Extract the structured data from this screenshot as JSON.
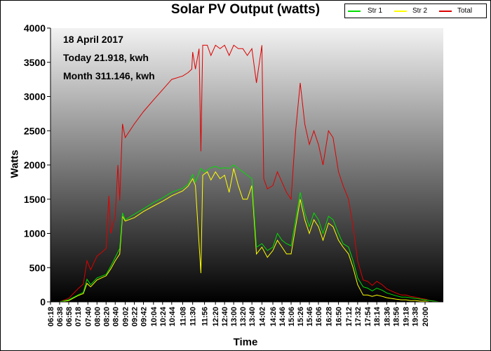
{
  "chart_data": {
    "type": "line",
    "title": "Solar PV Output (watts)",
    "xlabel": "Time",
    "ylabel": "Watts",
    "ylim": [
      0,
      4000
    ],
    "yticks": [
      0,
      500,
      1000,
      1500,
      2000,
      2500,
      3000,
      3500,
      4000
    ],
    "x_range": [
      "06:18",
      "20:40"
    ],
    "x_tick_labels": [
      "06:18",
      "06:38",
      "06:58",
      "07:18",
      "07:40",
      "08:00",
      "08:20",
      "08:40",
      "09:02",
      "09:22",
      "09:42",
      "10:04",
      "10:24",
      "10:44",
      "11:08",
      "11:30",
      "11:56",
      "12:20",
      "12:40",
      "13:00",
      "13:20",
      "13:40",
      "14:02",
      "14:26",
      "14:46",
      "15:06",
      "15:26",
      "15:46",
      "16:06",
      "16:28",
      "16:50",
      "17:12",
      "17:32",
      "17:54",
      "18:14",
      "18:36",
      "18:56",
      "19:18",
      "19:38",
      "20:00"
    ],
    "annotations": [
      "18 April 2017",
      "Today 21.918, kwh",
      "Month 311.146, kwh"
    ],
    "legend_position": "top-right",
    "background": "vertical gradient, light grey at top to black at bottom",
    "series": [
      {
        "name": "Str 1",
        "color": "#00dd00",
        "points": [
          [
            "06:18",
            0
          ],
          [
            "06:38",
            0
          ],
          [
            "06:58",
            30
          ],
          [
            "07:18",
            100
          ],
          [
            "07:30",
            140
          ],
          [
            "07:38",
            330
          ],
          [
            "07:46",
            250
          ],
          [
            "08:00",
            350
          ],
          [
            "08:20",
            400
          ],
          [
            "08:30",
            520
          ],
          [
            "08:40",
            650
          ],
          [
            "08:50",
            780
          ],
          [
            "08:56",
            1300
          ],
          [
            "09:02",
            1200
          ],
          [
            "09:22",
            1280
          ],
          [
            "09:42",
            1360
          ],
          [
            "10:04",
            1450
          ],
          [
            "10:24",
            1520
          ],
          [
            "10:44",
            1600
          ],
          [
            "11:08",
            1660
          ],
          [
            "11:20",
            1720
          ],
          [
            "11:30",
            1860
          ],
          [
            "11:36",
            1750
          ],
          [
            "11:48",
            1950
          ],
          [
            "11:56",
            1900
          ],
          [
            "12:10",
            1960
          ],
          [
            "12:20",
            1980
          ],
          [
            "12:30",
            1950
          ],
          [
            "12:40",
            1960
          ],
          [
            "12:50",
            1950
          ],
          [
            "13:00",
            2000
          ],
          [
            "13:10",
            1950
          ],
          [
            "13:20",
            1900
          ],
          [
            "13:30",
            1850
          ],
          [
            "13:40",
            1800
          ],
          [
            "13:50",
            800
          ],
          [
            "14:02",
            850
          ],
          [
            "14:14",
            750
          ],
          [
            "14:26",
            800
          ],
          [
            "14:36",
            1000
          ],
          [
            "14:46",
            900
          ],
          [
            "14:56",
            850
          ],
          [
            "15:06",
            820
          ],
          [
            "15:16",
            1200
          ],
          [
            "15:26",
            1600
          ],
          [
            "15:36",
            1300
          ],
          [
            "15:46",
            1100
          ],
          [
            "15:56",
            1300
          ],
          [
            "16:06",
            1200
          ],
          [
            "16:16",
            1000
          ],
          [
            "16:28",
            1250
          ],
          [
            "16:38",
            1200
          ],
          [
            "16:50",
            1000
          ],
          [
            "17:00",
            850
          ],
          [
            "17:12",
            800
          ],
          [
            "17:22",
            600
          ],
          [
            "17:32",
            350
          ],
          [
            "17:44",
            220
          ],
          [
            "17:54",
            200
          ],
          [
            "18:04",
            160
          ],
          [
            "18:14",
            200
          ],
          [
            "18:26",
            170
          ],
          [
            "18:36",
            130
          ],
          [
            "18:46",
            110
          ],
          [
            "18:56",
            90
          ],
          [
            "19:08",
            70
          ],
          [
            "19:18",
            70
          ],
          [
            "19:28",
            60
          ],
          [
            "19:38",
            50
          ],
          [
            "19:50",
            40
          ],
          [
            "20:00",
            30
          ],
          [
            "20:10",
            20
          ],
          [
            "20:20",
            10
          ],
          [
            "20:30",
            0
          ],
          [
            "20:40",
            0
          ]
        ]
      },
      {
        "name": "Str 2",
        "color": "#ffff00",
        "points": [
          [
            "06:18",
            0
          ],
          [
            "06:38",
            0
          ],
          [
            "06:58",
            20
          ],
          [
            "07:18",
            90
          ],
          [
            "07:30",
            120
          ],
          [
            "07:38",
            270
          ],
          [
            "07:46",
            220
          ],
          [
            "08:00",
            320
          ],
          [
            "08:20",
            380
          ],
          [
            "08:30",
            480
          ],
          [
            "08:40",
            600
          ],
          [
            "08:50",
            700
          ],
          [
            "08:56",
            1250
          ],
          [
            "09:02",
            1180
          ],
          [
            "09:22",
            1230
          ],
          [
            "09:42",
            1320
          ],
          [
            "10:04",
            1400
          ],
          [
            "10:24",
            1470
          ],
          [
            "10:44",
            1550
          ],
          [
            "11:08",
            1620
          ],
          [
            "11:20",
            1690
          ],
          [
            "11:30",
            1800
          ],
          [
            "11:36",
            1700
          ],
          [
            "11:48",
            420
          ],
          [
            "11:52",
            1850
          ],
          [
            "12:02",
            1900
          ],
          [
            "12:10",
            1780
          ],
          [
            "12:20",
            1900
          ],
          [
            "12:30",
            1800
          ],
          [
            "12:40",
            1850
          ],
          [
            "12:50",
            1600
          ],
          [
            "13:00",
            1950
          ],
          [
            "13:10",
            1700
          ],
          [
            "13:20",
            1500
          ],
          [
            "13:30",
            1500
          ],
          [
            "13:40",
            1700
          ],
          [
            "13:50",
            700
          ],
          [
            "14:02",
            800
          ],
          [
            "14:14",
            650
          ],
          [
            "14:26",
            750
          ],
          [
            "14:36",
            900
          ],
          [
            "14:46",
            800
          ],
          [
            "14:56",
            700
          ],
          [
            "15:06",
            700
          ],
          [
            "15:16",
            1100
          ],
          [
            "15:26",
            1500
          ],
          [
            "15:36",
            1200
          ],
          [
            "15:46",
            1000
          ],
          [
            "15:56",
            1200
          ],
          [
            "16:06",
            1100
          ],
          [
            "16:16",
            900
          ],
          [
            "16:28",
            1150
          ],
          [
            "16:38",
            1100
          ],
          [
            "16:50",
            900
          ],
          [
            "17:00",
            800
          ],
          [
            "17:12",
            700
          ],
          [
            "17:22",
            500
          ],
          [
            "17:32",
            250
          ],
          [
            "17:44",
            100
          ],
          [
            "17:54",
            100
          ],
          [
            "18:04",
            80
          ],
          [
            "18:14",
            100
          ],
          [
            "18:26",
            80
          ],
          [
            "18:36",
            60
          ],
          [
            "18:46",
            50
          ],
          [
            "18:56",
            40
          ],
          [
            "19:08",
            30
          ],
          [
            "19:18",
            30
          ],
          [
            "19:28",
            20
          ],
          [
            "19:38",
            20
          ],
          [
            "19:50",
            10
          ],
          [
            "20:00",
            10
          ],
          [
            "20:10",
            0
          ],
          [
            "20:20",
            0
          ],
          [
            "20:30",
            0
          ],
          [
            "20:40",
            0
          ]
        ]
      },
      {
        "name": "Total",
        "color": "#dd0000",
        "points": [
          [
            "06:18",
            0
          ],
          [
            "06:38",
            0
          ],
          [
            "06:58",
            50
          ],
          [
            "07:18",
            190
          ],
          [
            "07:30",
            260
          ],
          [
            "07:38",
            600
          ],
          [
            "07:46",
            470
          ],
          [
            "08:00",
            670
          ],
          [
            "08:10",
            720
          ],
          [
            "08:20",
            780
          ],
          [
            "08:26",
            1550
          ],
          [
            "08:30",
            1000
          ],
          [
            "08:40",
            1250
          ],
          [
            "08:46",
            2000
          ],
          [
            "08:50",
            1480
          ],
          [
            "08:56",
            2600
          ],
          [
            "09:02",
            2400
          ],
          [
            "09:22",
            2600
          ],
          [
            "09:42",
            2780
          ],
          [
            "10:04",
            2950
          ],
          [
            "10:24",
            3100
          ],
          [
            "10:44",
            3250
          ],
          [
            "11:08",
            3300
          ],
          [
            "11:20",
            3350
          ],
          [
            "11:28",
            3400
          ],
          [
            "11:30",
            3650
          ],
          [
            "11:36",
            3400
          ],
          [
            "11:44",
            3700
          ],
          [
            "11:48",
            2200
          ],
          [
            "11:52",
            3750
          ],
          [
            "12:02",
            3750
          ],
          [
            "12:10",
            3600
          ],
          [
            "12:20",
            3750
          ],
          [
            "12:30",
            3700
          ],
          [
            "12:40",
            3750
          ],
          [
            "12:50",
            3600
          ],
          [
            "13:00",
            3750
          ],
          [
            "13:10",
            3700
          ],
          [
            "13:20",
            3700
          ],
          [
            "13:30",
            3600
          ],
          [
            "13:40",
            3700
          ],
          [
            "13:50",
            3200
          ],
          [
            "14:02",
            3750
          ],
          [
            "14:06",
            1800
          ],
          [
            "14:14",
            1650
          ],
          [
            "14:26",
            1700
          ],
          [
            "14:36",
            1900
          ],
          [
            "14:46",
            1750
          ],
          [
            "14:56",
            1600
          ],
          [
            "15:06",
            1500
          ],
          [
            "15:16",
            2500
          ],
          [
            "15:26",
            3200
          ],
          [
            "15:36",
            2600
          ],
          [
            "15:46",
            2300
          ],
          [
            "15:56",
            2500
          ],
          [
            "16:06",
            2300
          ],
          [
            "16:16",
            2000
          ],
          [
            "16:28",
            2500
          ],
          [
            "16:38",
            2400
          ],
          [
            "16:50",
            1900
          ],
          [
            "17:00",
            1700
          ],
          [
            "17:12",
            1500
          ],
          [
            "17:22",
            1100
          ],
          [
            "17:32",
            600
          ],
          [
            "17:44",
            320
          ],
          [
            "17:54",
            300
          ],
          [
            "18:04",
            240
          ],
          [
            "18:14",
            300
          ],
          [
            "18:26",
            250
          ],
          [
            "18:36",
            190
          ],
          [
            "18:46",
            160
          ],
          [
            "18:56",
            130
          ],
          [
            "19:08",
            100
          ],
          [
            "19:18",
            100
          ],
          [
            "19:28",
            80
          ],
          [
            "19:38",
            70
          ],
          [
            "19:50",
            50
          ],
          [
            "20:00",
            40
          ],
          [
            "20:10",
            20
          ],
          [
            "20:20",
            10
          ],
          [
            "20:30",
            0
          ],
          [
            "20:40",
            0
          ]
        ]
      }
    ]
  }
}
